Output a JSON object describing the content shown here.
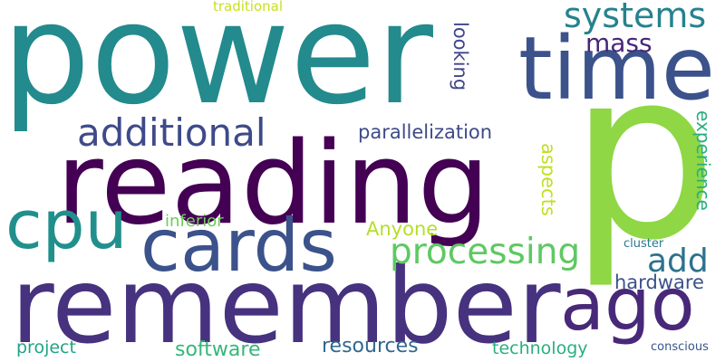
{
  "words": {
    "power": {
      "text": "power",
      "color": "#238a8d"
    },
    "p": {
      "text": "p",
      "color": "#8fd744"
    },
    "reading": {
      "text": "reading",
      "color": "#440154"
    },
    "remember": {
      "text": "remember",
      "color": "#46327e"
    },
    "time": {
      "text": "time",
      "color": "#3b528b"
    },
    "cards": {
      "text": "cards",
      "color": "#3b528b"
    },
    "cpu": {
      "text": "cpu",
      "color": "#21908d"
    },
    "ago": {
      "text": "ago",
      "color": "#482878"
    },
    "additional": {
      "text": "additional",
      "color": "#3e4a89"
    },
    "systems": {
      "text": "systems",
      "color": "#26828e"
    },
    "processing": {
      "text": "processing",
      "color": "#5ec962"
    },
    "parallelization": {
      "text": "parallelization",
      "color": "#3e4a89"
    },
    "mass": {
      "text": "mass",
      "color": "#482677"
    },
    "add": {
      "text": "add",
      "color": "#2c728e"
    },
    "hardware": {
      "text": "hardware",
      "color": "#3b528b"
    },
    "software": {
      "text": "software",
      "color": "#35b779"
    },
    "resources": {
      "text": "resources",
      "color": "#31688e"
    },
    "technology": {
      "text": "technology",
      "color": "#29af7f"
    },
    "project": {
      "text": "project",
      "color": "#20a386"
    },
    "inferior": {
      "text": "inferior",
      "color": "#6ccd5a"
    },
    "Anyone": {
      "text": "Anyone",
      "color": "#b5de2b"
    },
    "looking": {
      "text": "looking",
      "color": "#404688"
    },
    "aspects": {
      "text": "aspects",
      "color": "#c2df23"
    },
    "experience": {
      "text": "experience",
      "color": "#29af7f"
    },
    "traditional": {
      "text": "traditional",
      "color": "#c8e020"
    },
    "cluster": {
      "text": "cluster",
      "color": "#2a788e"
    },
    "conscious": {
      "text": "conscious",
      "color": "#39568c"
    }
  }
}
